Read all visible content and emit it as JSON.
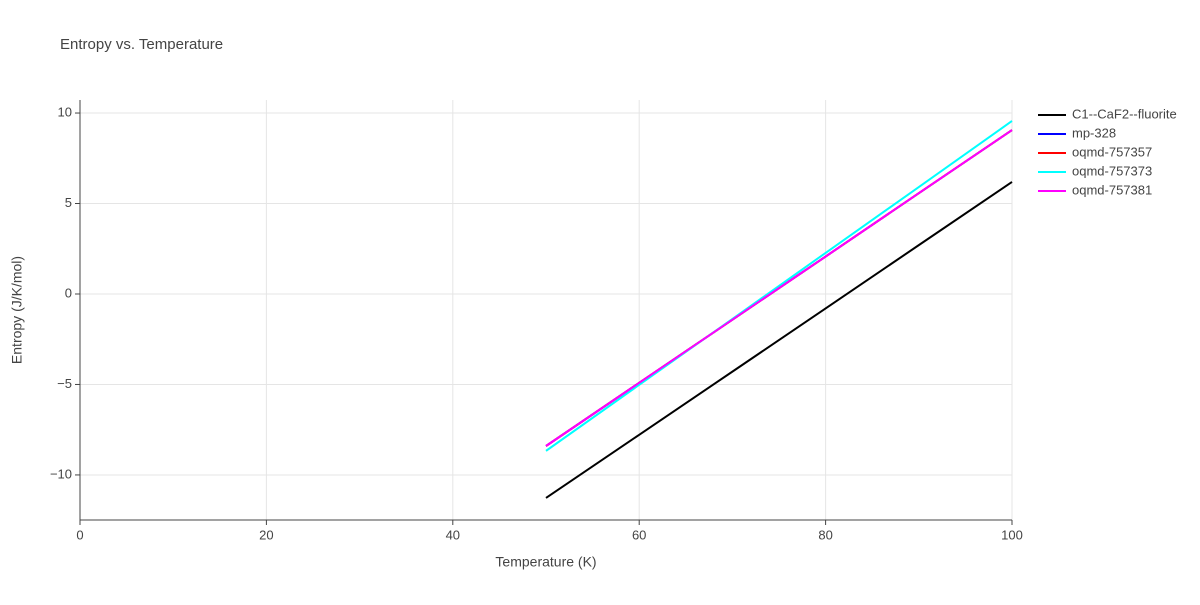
{
  "chart_data": {
    "type": "line",
    "title": "Entropy vs. Temperature",
    "x_label": "Temperature (K)",
    "y_label": "Entropy (J/K/mol)",
    "x": [
      50,
      60,
      70,
      80,
      90,
      100
    ],
    "series": [
      {
        "name": "C1--CaF2--fluorite",
        "color": "#000000",
        "values": [
          -11.27,
          -7.78,
          -4.29,
          -0.8,
          2.7,
          6.19
        ]
      },
      {
        "name": "mp-328",
        "color": "#0000ff",
        "values": [
          -8.4,
          -4.91,
          -1.42,
          2.07,
          5.57,
          9.06
        ]
      },
      {
        "name": "oqmd-757357",
        "color": "#ff0000",
        "values": [
          -8.4,
          -4.91,
          -1.42,
          2.07,
          5.57,
          9.06
        ]
      },
      {
        "name": "oqmd-757373",
        "color": "#00ffff",
        "values": [
          -8.67,
          -5.02,
          -1.38,
          2.27,
          5.91,
          9.56
        ]
      },
      {
        "name": "oqmd-757381",
        "color": "#ff00ff",
        "values": [
          -8.4,
          -4.91,
          -1.42,
          2.07,
          5.57,
          9.06
        ]
      }
    ],
    "xlim": [
      0,
      100
    ],
    "xticks": [
      0,
      20,
      40,
      60,
      80,
      100
    ],
    "ylim": [
      -12.49,
      10.72
    ],
    "yticks": [
      {
        "value": -10,
        "label": "−10"
      },
      {
        "value": -5,
        "label": "−5"
      },
      0,
      5,
      10
    ],
    "grid": true,
    "legend": "right"
  }
}
